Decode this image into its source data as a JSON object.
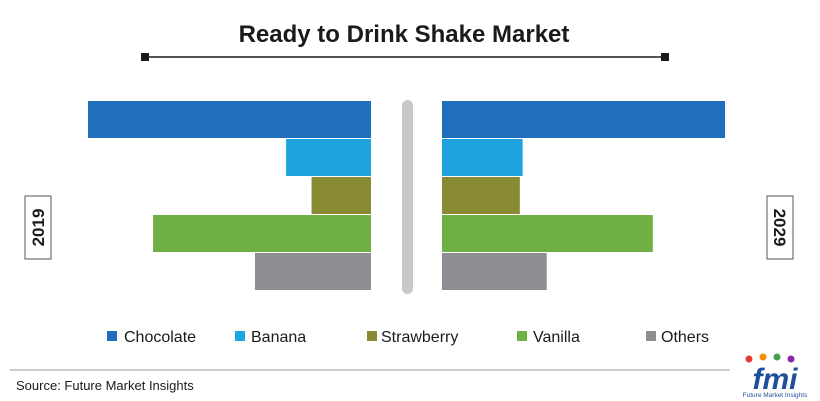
{
  "chart_data": {
    "type": "bar",
    "title": "Ready to Drink Shake Market",
    "categories": [
      "Chocolate",
      "Banana",
      "Strawberry",
      "Vanilla",
      "Others"
    ],
    "series": [
      {
        "name": "2019",
        "values": [
          100,
          30,
          21,
          77,
          41
        ]
      },
      {
        "name": "2029",
        "values": [
          100,
          28.5,
          27.5,
          74.5,
          37
        ]
      }
    ],
    "xlim": [
      0,
      100
    ],
    "grid": false,
    "legend_position": "bottom",
    "colors": [
      "#1f6fbd",
      "#1fa3df",
      "#888a34",
      "#6eb043",
      "#8c8e93"
    ]
  },
  "legend": {
    "items": [
      "Chocolate",
      "Banana",
      "Strawberry",
      "Vanilla",
      "Others"
    ]
  },
  "source": "Source: Future Market Insights",
  "logo": {
    "text": "fmi",
    "subtext": "Future Market Insights",
    "dot_colors": [
      "#e53935",
      "#fb8c00",
      "#43a047",
      "#8e24aa"
    ]
  }
}
